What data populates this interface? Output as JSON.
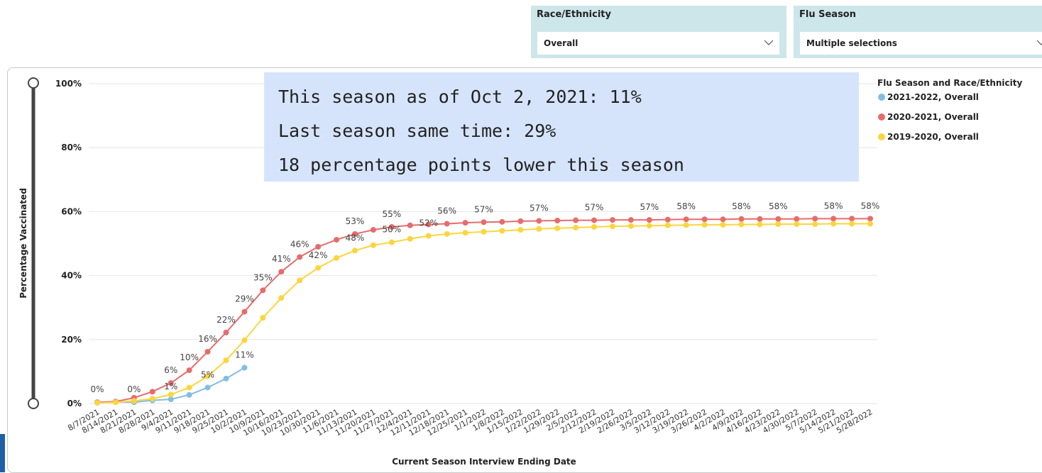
{
  "filters": [
    {
      "title": "Race/Ethnicity",
      "value": "Overall"
    },
    {
      "title": "Flu Season",
      "value": "Multiple selections"
    }
  ],
  "annotation": [
    "This season as of Oct 2, 2021: 11%",
    "Last season same time: 29%",
    "18 percentage points lower this season"
  ],
  "chart_data": {
    "type": "line",
    "x_label": "Current Season Interview Ending Date",
    "y_label": "Percentage Vaccinated",
    "legend_title": "Flu Season and Race/Ethnicity",
    "legend": "top-right",
    "grid": true,
    "categories": [
      "8/7/2021",
      "8/14/2021",
      "8/21/2021",
      "8/28/2021",
      "9/4/2021",
      "9/11/2021",
      "9/18/2021",
      "9/25/2021",
      "10/2/2021",
      "10/9/2021",
      "10/16/2021",
      "10/23/2021",
      "10/30/2021",
      "11/6/2021",
      "11/13/2021",
      "11/20/2021",
      "11/27/2021",
      "12/4/2021",
      "12/11/2021",
      "12/18/2021",
      "12/25/2021",
      "1/1/2022",
      "1/8/2022",
      "1/15/2022",
      "1/22/2022",
      "1/29/2022",
      "2/5/2022",
      "2/12/2022",
      "2/19/2022",
      "2/26/2022",
      "3/5/2022",
      "3/12/2022",
      "3/19/2022",
      "3/26/2022",
      "4/2/2022",
      "4/9/2022",
      "4/16/2022",
      "4/23/2022",
      "4/30/2022",
      "5/7/2022",
      "5/14/2022",
      "5/21/2022",
      "5/28/2022"
    ],
    "ylim": [
      0,
      100
    ],
    "yticks": [
      {
        "value": 0,
        "label": "0%"
      },
      {
        "value": 20,
        "label": "20%"
      },
      {
        "value": 40,
        "label": "40%"
      },
      {
        "value": 60,
        "label": "60%"
      },
      {
        "value": 80,
        "label": "80%"
      },
      {
        "value": 100,
        "label": "100%"
      }
    ],
    "series": [
      {
        "name": "2021-2022, Overall",
        "color": "#82bde6",
        "values": [
          0.3,
          0.5,
          0.4,
          1,
          1.3,
          2.7,
          5,
          7.8,
          11.2,
          null,
          null,
          null,
          null,
          null,
          null,
          null,
          null,
          null,
          null,
          null,
          null,
          null,
          null,
          null,
          null,
          null,
          null,
          null,
          null,
          null,
          null,
          null,
          null,
          null,
          null,
          null,
          null,
          null,
          null,
          null,
          null,
          null,
          null
        ],
        "value_labels": [
          null,
          null,
          "0%",
          null,
          "1%",
          null,
          "5%",
          null,
          "11%",
          null,
          null,
          null,
          null,
          null,
          null,
          null,
          null,
          null,
          null,
          null,
          null,
          null,
          null,
          null,
          null,
          null,
          null,
          null,
          null,
          null,
          null,
          null,
          null,
          null,
          null,
          null,
          null,
          null,
          null,
          null,
          null,
          null,
          null
        ]
      },
      {
        "name": "2020-2021, Overall",
        "color": "#e66c6c",
        "values": [
          0.4,
          0.6,
          1.8,
          3.7,
          6.4,
          10.4,
          16.2,
          22.2,
          28.7,
          35.4,
          41.2,
          45.8,
          49,
          51.2,
          53,
          54.3,
          55.2,
          55.7,
          56,
          56.2,
          56.5,
          56.7,
          56.8,
          57,
          57.1,
          57.2,
          57.3,
          57.3,
          57.4,
          57.4,
          57.4,
          57.5,
          57.6,
          57.6,
          57.6,
          57.7,
          57.7,
          57.7,
          57.7,
          57.8,
          57.8,
          57.8,
          57.8
        ],
        "value_labels": [
          "0%",
          null,
          null,
          null,
          "6%",
          "10%",
          "16%",
          "22%",
          "29%",
          "35%",
          "41%",
          "46%",
          null,
          null,
          "53%",
          null,
          "55%",
          null,
          null,
          "56%",
          null,
          "57%",
          null,
          null,
          "57%",
          null,
          null,
          "57%",
          null,
          null,
          "57%",
          null,
          "58%",
          null,
          null,
          "58%",
          null,
          "58%",
          null,
          null,
          "58%",
          null,
          "58%"
        ]
      },
      {
        "name": "2019-2020, Overall",
        "color": "#fcd53f",
        "values": [
          0.2,
          0.4,
          0.8,
          1.5,
          2.8,
          5,
          8.5,
          13.5,
          19.8,
          26.8,
          33,
          38.5,
          42.4,
          45.5,
          47.8,
          49.5,
          50.4,
          51.5,
          52.4,
          53,
          53.4,
          53.7,
          54,
          54.3,
          54.6,
          54.8,
          55,
          55.2,
          55.4,
          55.5,
          55.6,
          55.7,
          55.8,
          55.9,
          55.9,
          56,
          56,
          56.1,
          56.1,
          56.1,
          56.2,
          56.2,
          56.2
        ],
        "value_labels": [
          null,
          null,
          null,
          null,
          null,
          null,
          null,
          null,
          null,
          null,
          null,
          null,
          "42%",
          null,
          "48%",
          null,
          "50%",
          null,
          "52%",
          null,
          null,
          null,
          null,
          null,
          null,
          null,
          null,
          null,
          null,
          null,
          null,
          null,
          null,
          null,
          null,
          null,
          null,
          null,
          null,
          null,
          null,
          null,
          null
        ]
      }
    ]
  }
}
